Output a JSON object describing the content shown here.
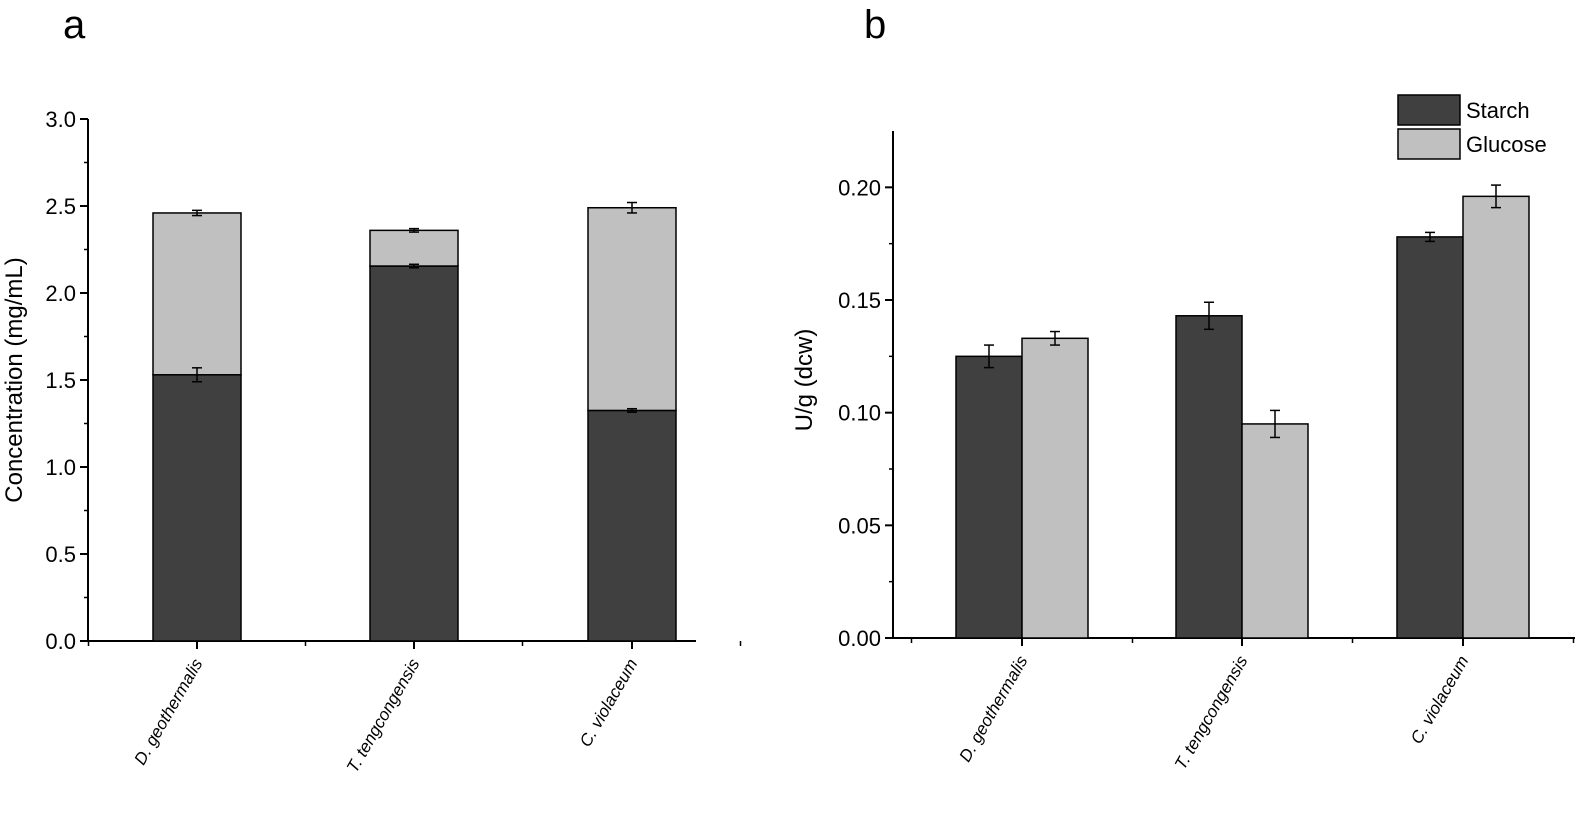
{
  "chart_data": [
    {
      "panel": "a",
      "type": "bar",
      "stacked": true,
      "categories": [
        "D. geothermalis",
        "T. tengcongensis",
        "C. violaceum"
      ],
      "series": [
        {
          "values": [
            1.53,
            2.155,
            1.325
          ],
          "errors": [
            0.04,
            0.01,
            0.01
          ],
          "color": "#404040"
        },
        {
          "values": [
            0.93,
            0.205,
            1.165
          ],
          "totals": [
            2.46,
            2.36,
            2.49
          ],
          "errors": [
            0.015,
            0.01,
            0.03
          ],
          "color": "#c0c0c0"
        }
      ],
      "ylabel": "Concentration (mg/mL)",
      "ylim": [
        0,
        3.0
      ],
      "yticks": [
        "0.0",
        "0.5",
        "1.0",
        "1.5",
        "2.0",
        "2.5",
        "3.0"
      ],
      "grid": false
    },
    {
      "panel": "b",
      "type": "bar",
      "stacked": false,
      "categories": [
        "D. geothermalis",
        "T. tengcongensis",
        "C. violaceum"
      ],
      "series": [
        {
          "name": "Starch",
          "values": [
            0.125,
            0.143,
            0.178
          ],
          "errors": [
            0.005,
            0.006,
            0.002
          ],
          "color": "#404040"
        },
        {
          "name": "Glucose",
          "values": [
            0.133,
            0.095,
            0.196
          ],
          "errors": [
            0.003,
            0.006,
            0.005
          ],
          "color": "#c0c0c0"
        }
      ],
      "ylabel": "U/g (dcw)",
      "ylim": [
        0,
        0.225
      ],
      "yticks": [
        "0.00",
        "0.05",
        "0.10",
        "0.15",
        "0.20"
      ],
      "legend": "top-right",
      "grid": false
    }
  ]
}
